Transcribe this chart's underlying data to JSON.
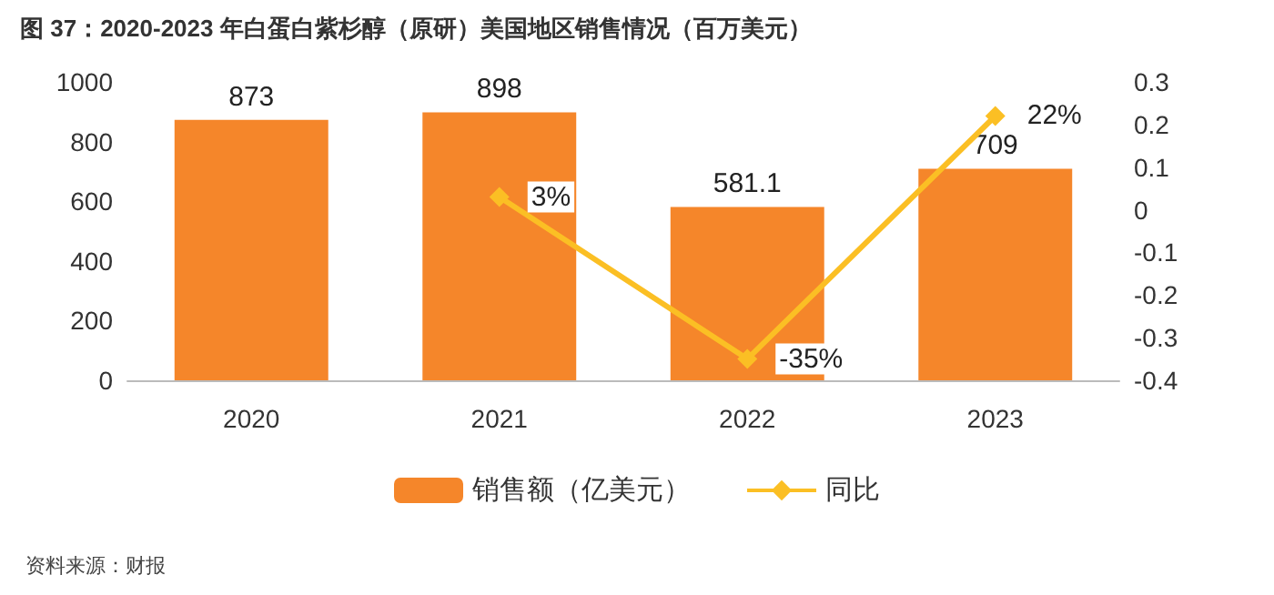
{
  "chart_data": {
    "type": "bar",
    "title": "图 37：2020-2023 年白蛋白紫杉醇（原研）美国地区销售情况（百万美元）",
    "categories": [
      "2020",
      "2021",
      "2022",
      "2023"
    ],
    "series": [
      {
        "name": "销售额（亿美元）",
        "color": "#f5862a",
        "values": [
          873,
          898,
          581.1,
          709
        ],
        "value_labels": [
          "873",
          "898",
          "581.1",
          "709"
        ]
      },
      {
        "name": "同比",
        "type": "line",
        "axis": "y2",
        "color": "#fbbf24",
        "marker": "diamond",
        "values": [
          null,
          0.03,
          -0.35,
          0.22
        ],
        "value_labels": [
          null,
          "3%",
          "-35%",
          "22%"
        ]
      }
    ],
    "ylim": [
      0,
      1000
    ],
    "yticks": [
      0,
      200,
      400,
      600,
      800,
      1000
    ],
    "y2lim": [
      -0.4,
      0.3
    ],
    "y2ticks": [
      -0.4,
      -0.3,
      -0.2,
      -0.1,
      0,
      0.1,
      0.2,
      0.3
    ],
    "grid": false,
    "legend": "bottom",
    "annotations": [
      "资料来源：财报"
    ]
  }
}
